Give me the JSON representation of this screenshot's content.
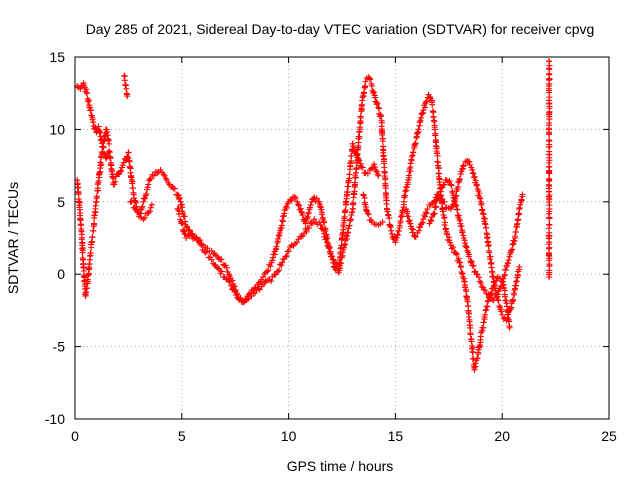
{
  "chart_data": {
    "type": "scatter",
    "title": "Day 285 of 2021, Sidereal Day-to-day VTEC variation (SDTVAR) for receiver cpvg",
    "xlabel": "GPS time / hours",
    "ylabel": "SDTVAR / TECUs",
    "xlim": [
      0,
      25
    ],
    "ylim": [
      -10,
      15
    ],
    "xticks": [
      0,
      5,
      10,
      15,
      20,
      25
    ],
    "yticks": [
      -10,
      -5,
      0,
      5,
      10,
      15
    ],
    "grid": true,
    "marker": "+",
    "color": "#ff0000",
    "series": [
      {
        "name": "SDTVAR",
        "trace": [
          [
            0.1,
            13.0
          ],
          [
            0.25,
            12.8
          ],
          [
            0.4,
            13.2
          ],
          [
            0.55,
            12.5
          ],
          [
            0.7,
            11.5
          ],
          [
            0.85,
            10.5
          ],
          [
            1.0,
            9.8
          ],
          [
            1.1,
            10.2
          ],
          [
            1.2,
            9.5
          ],
          [
            1.3,
            8.8
          ],
          [
            1.45,
            8.0
          ],
          [
            1.6,
            8.5
          ],
          [
            1.7,
            7.5
          ],
          [
            1.8,
            6.2
          ],
          [
            2.5,
            8.4
          ],
          [
            2.6,
            7.0
          ],
          [
            2.75,
            5.5
          ],
          [
            2.9,
            4.5
          ],
          [
            3.05,
            4.2
          ],
          [
            3.2,
            5.0
          ],
          [
            3.4,
            6.0
          ],
          [
            3.55,
            6.6
          ],
          [
            3.7,
            6.8
          ],
          [
            3.85,
            7.0
          ],
          [
            4.0,
            7.2
          ],
          [
            4.15,
            6.9
          ],
          [
            4.25,
            6.6
          ],
          [
            4.8,
            5.5
          ],
          [
            4.95,
            5.0
          ],
          [
            5.1,
            4.0
          ],
          [
            5.25,
            3.2
          ],
          [
            5.4,
            2.8
          ],
          [
            5.6,
            2.5
          ],
          [
            5.8,
            2.3
          ],
          [
            6.0,
            2.0
          ],
          [
            6.2,
            1.8
          ],
          [
            6.4,
            1.6
          ],
          [
            6.6,
            1.3
          ],
          [
            6.8,
            1.0
          ],
          [
            7.0,
            0.6
          ],
          [
            7.2,
            0.0
          ],
          [
            7.4,
            -0.7
          ],
          [
            7.6,
            -1.4
          ],
          [
            7.8,
            -1.9
          ],
          [
            8.0,
            -1.7
          ],
          [
            8.2,
            -1.3
          ],
          [
            8.4,
            -1.0
          ],
          [
            8.6,
            -0.6
          ],
          [
            8.8,
            -0.2
          ],
          [
            9.0,
            0.2
          ],
          [
            9.2,
            0.8
          ],
          [
            9.4,
            1.7
          ],
          [
            9.6,
            3.0
          ],
          [
            9.8,
            4.2
          ],
          [
            10.0,
            5.0
          ],
          [
            10.2,
            5.3
          ],
          [
            10.4,
            5.0
          ],
          [
            10.6,
            4.3
          ],
          [
            10.8,
            3.5
          ],
          [
            11.0,
            4.6
          ],
          [
            11.2,
            5.3
          ],
          [
            11.4,
            5.0
          ],
          [
            11.6,
            3.9
          ],
          [
            11.8,
            2.5
          ],
          [
            12.0,
            1.2
          ],
          [
            12.2,
            0.3
          ],
          [
            12.35,
            0.1
          ],
          [
            13.0,
            4.5
          ],
          [
            13.15,
            7.0
          ],
          [
            13.3,
            9.5
          ],
          [
            13.45,
            12.0
          ],
          [
            13.6,
            13.3
          ],
          [
            13.75,
            13.6
          ],
          [
            13.9,
            13.0
          ],
          [
            14.05,
            12.2
          ],
          [
            14.2,
            11.5
          ],
          [
            14.35,
            10.6
          ],
          [
            14.6,
            4.5
          ],
          [
            14.8,
            3.0
          ],
          [
            15.0,
            2.2
          ],
          [
            15.2,
            3.2
          ],
          [
            15.4,
            5.0
          ],
          [
            15.6,
            6.5
          ],
          [
            15.8,
            8.2
          ],
          [
            16.0,
            9.5
          ],
          [
            16.2,
            10.8
          ],
          [
            16.4,
            11.8
          ],
          [
            16.55,
            12.4
          ],
          [
            16.7,
            12.0
          ],
          [
            16.85,
            10.0
          ],
          [
            17.0,
            7.5
          ],
          [
            17.2,
            4.5
          ],
          [
            17.4,
            2.8
          ],
          [
            17.6,
            2.0
          ],
          [
            17.8,
            1.5
          ],
          [
            18.0,
            0.8
          ],
          [
            18.2,
            -0.3
          ],
          [
            18.4,
            -2.2
          ],
          [
            18.55,
            -4.5
          ],
          [
            18.7,
            -6.6
          ],
          [
            18.85,
            -5.8
          ],
          [
            19.0,
            -4.3
          ],
          [
            19.2,
            -2.8
          ],
          [
            19.4,
            -1.6
          ],
          [
            19.6,
            -0.8
          ],
          [
            19.8,
            -0.2
          ],
          [
            20.0,
            -0.3
          ],
          [
            20.2,
            -2.0
          ],
          [
            20.35,
            -3.7
          ]
        ],
        "trace2": [
          [
            0.1,
            6.5
          ],
          [
            0.2,
            5.0
          ],
          [
            0.3,
            3.0
          ],
          [
            0.4,
            0.5
          ],
          [
            0.5,
            -1.5
          ],
          [
            0.6,
            -0.5
          ],
          [
            0.7,
            1.0
          ],
          [
            0.85,
            3.0
          ],
          [
            1.0,
            5.0
          ],
          [
            1.15,
            7.0
          ],
          [
            1.3,
            8.8
          ],
          [
            1.45,
            10.0
          ],
          [
            1.6,
            9.0
          ],
          [
            2.6,
            5.0
          ],
          [
            2.8,
            4.6
          ],
          [
            3.0,
            4.0
          ],
          [
            3.2,
            3.8
          ],
          [
            3.4,
            4.2
          ],
          [
            3.6,
            4.8
          ],
          [
            4.8,
            4.5
          ],
          [
            5.0,
            3.5
          ],
          [
            5.2,
            2.5
          ],
          [
            5.5,
            2.8
          ],
          [
            5.8,
            2.2
          ],
          [
            6.1,
            1.5
          ],
          [
            6.4,
            1.0
          ],
          [
            6.7,
            0.4
          ],
          [
            7.0,
            -0.2
          ],
          [
            7.3,
            -0.8
          ],
          [
            7.6,
            -1.6
          ],
          [
            7.9,
            -1.9
          ],
          [
            8.2,
            -1.5
          ],
          [
            8.5,
            -1.1
          ],
          [
            8.8,
            -0.7
          ],
          [
            9.1,
            -0.4
          ],
          [
            9.4,
            0.0
          ],
          [
            9.7,
            0.8
          ],
          [
            10.0,
            1.6
          ],
          [
            10.3,
            2.1
          ],
          [
            10.6,
            2.6
          ],
          [
            10.9,
            3.2
          ],
          [
            11.2,
            3.8
          ],
          [
            11.5,
            3.4
          ],
          [
            11.8,
            2.2
          ],
          [
            12.1,
            1.0
          ],
          [
            12.35,
            0.4
          ],
          [
            13.0,
            9.0
          ],
          [
            13.2,
            8.2
          ],
          [
            13.4,
            7.4
          ],
          [
            13.6,
            7.0
          ],
          [
            13.8,
            7.2
          ],
          [
            14.0,
            7.6
          ],
          [
            14.2,
            6.8
          ],
          [
            13.5,
            5.5
          ],
          [
            13.7,
            4.2
          ],
          [
            13.9,
            3.6
          ],
          [
            14.2,
            3.4
          ],
          [
            14.4,
            3.6
          ],
          [
            15.5,
            4.5
          ],
          [
            15.7,
            3.5
          ],
          [
            15.9,
            2.6
          ],
          [
            16.1,
            3.0
          ],
          [
            16.3,
            3.8
          ],
          [
            16.5,
            4.5
          ],
          [
            16.8,
            5.0
          ],
          [
            17.0,
            5.5
          ],
          [
            17.2,
            5.2
          ],
          [
            17.4,
            4.6
          ],
          [
            17.6,
            4.5
          ],
          [
            17.8,
            5.2
          ],
          [
            18.0,
            6.5
          ],
          [
            18.2,
            7.5
          ],
          [
            18.4,
            7.8
          ],
          [
            18.6,
            7.2
          ],
          [
            18.8,
            6.2
          ],
          [
            19.0,
            5.0
          ],
          [
            19.2,
            3.5
          ],
          [
            19.4,
            1.5
          ],
          [
            19.6,
            -0.5
          ],
          [
            19.8,
            -1.8
          ],
          [
            20.0,
            -2.8
          ],
          [
            20.2,
            -3.2
          ],
          [
            20.4,
            -2.4
          ],
          [
            20.6,
            -1.0
          ],
          [
            20.8,
            0.5
          ]
        ],
        "trace3": [
          [
            16.6,
            3.5
          ],
          [
            16.8,
            4.2
          ],
          [
            17.0,
            5.4
          ],
          [
            17.2,
            6.0
          ],
          [
            17.4,
            6.5
          ],
          [
            17.6,
            6.2
          ],
          [
            17.8,
            5.0
          ],
          [
            18.0,
            3.8
          ],
          [
            18.2,
            2.5
          ],
          [
            18.4,
            1.5
          ],
          [
            18.6,
            0.6
          ],
          [
            18.8,
            0.0
          ],
          [
            19.0,
            -0.6
          ],
          [
            19.2,
            -1.1
          ],
          [
            19.4,
            -1.5
          ],
          [
            19.6,
            -1.8
          ],
          [
            19.8,
            -1.4
          ],
          [
            20.0,
            -0.5
          ],
          [
            20.2,
            0.5
          ],
          [
            20.4,
            1.5
          ],
          [
            20.6,
            2.5
          ],
          [
            20.8,
            4.5
          ],
          [
            20.95,
            5.5
          ],
          [
            2.3,
            13.7
          ],
          [
            2.4,
            12.8
          ],
          [
            2.45,
            12.3
          ],
          [
            22.2,
            14.7
          ],
          [
            22.2,
            -0.2
          ]
        ]
      }
    ]
  }
}
